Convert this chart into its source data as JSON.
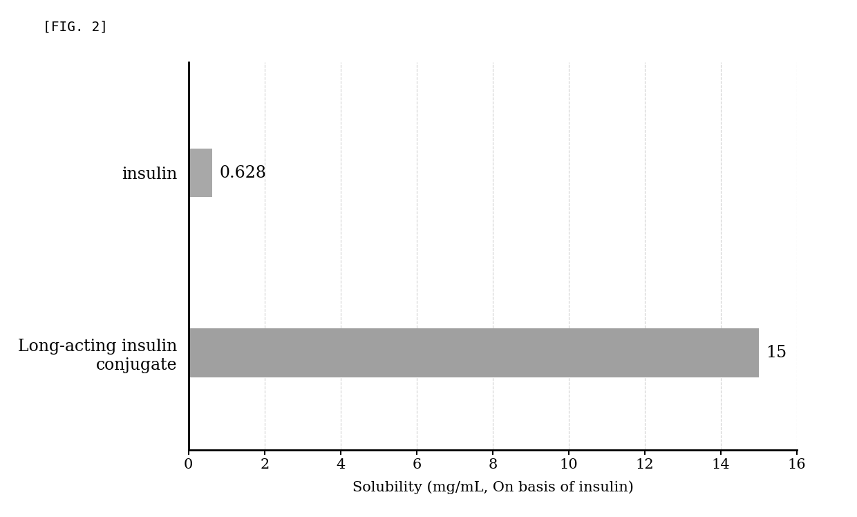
{
  "categories": [
    "Long-acting insulin\nconjugate",
    "insulin"
  ],
  "values": [
    15,
    0.628
  ],
  "value_labels": [
    "15",
    "0.628"
  ],
  "bar_colors": [
    "#a0a0a0",
    "#a8a8a8"
  ],
  "xlabel": "Solubility (mg/mL, On basis of insulin)",
  "xlim": [
    0,
    16
  ],
  "xticks": [
    0,
    2,
    4,
    6,
    8,
    10,
    12,
    14,
    16
  ],
  "fig_label": "[FIG. 2]",
  "background_color": "#ffffff",
  "grid_color": "#cccccc",
  "bar_height": 0.35,
  "y_insulin": 2.0,
  "y_conjugate": 0.7,
  "ylim": [
    0.0,
    2.8
  ],
  "label_fontsize": 17,
  "tick_fontsize": 15,
  "xlabel_fontsize": 15,
  "figlabel_fontsize": 14,
  "value_label_fontsize": 17
}
